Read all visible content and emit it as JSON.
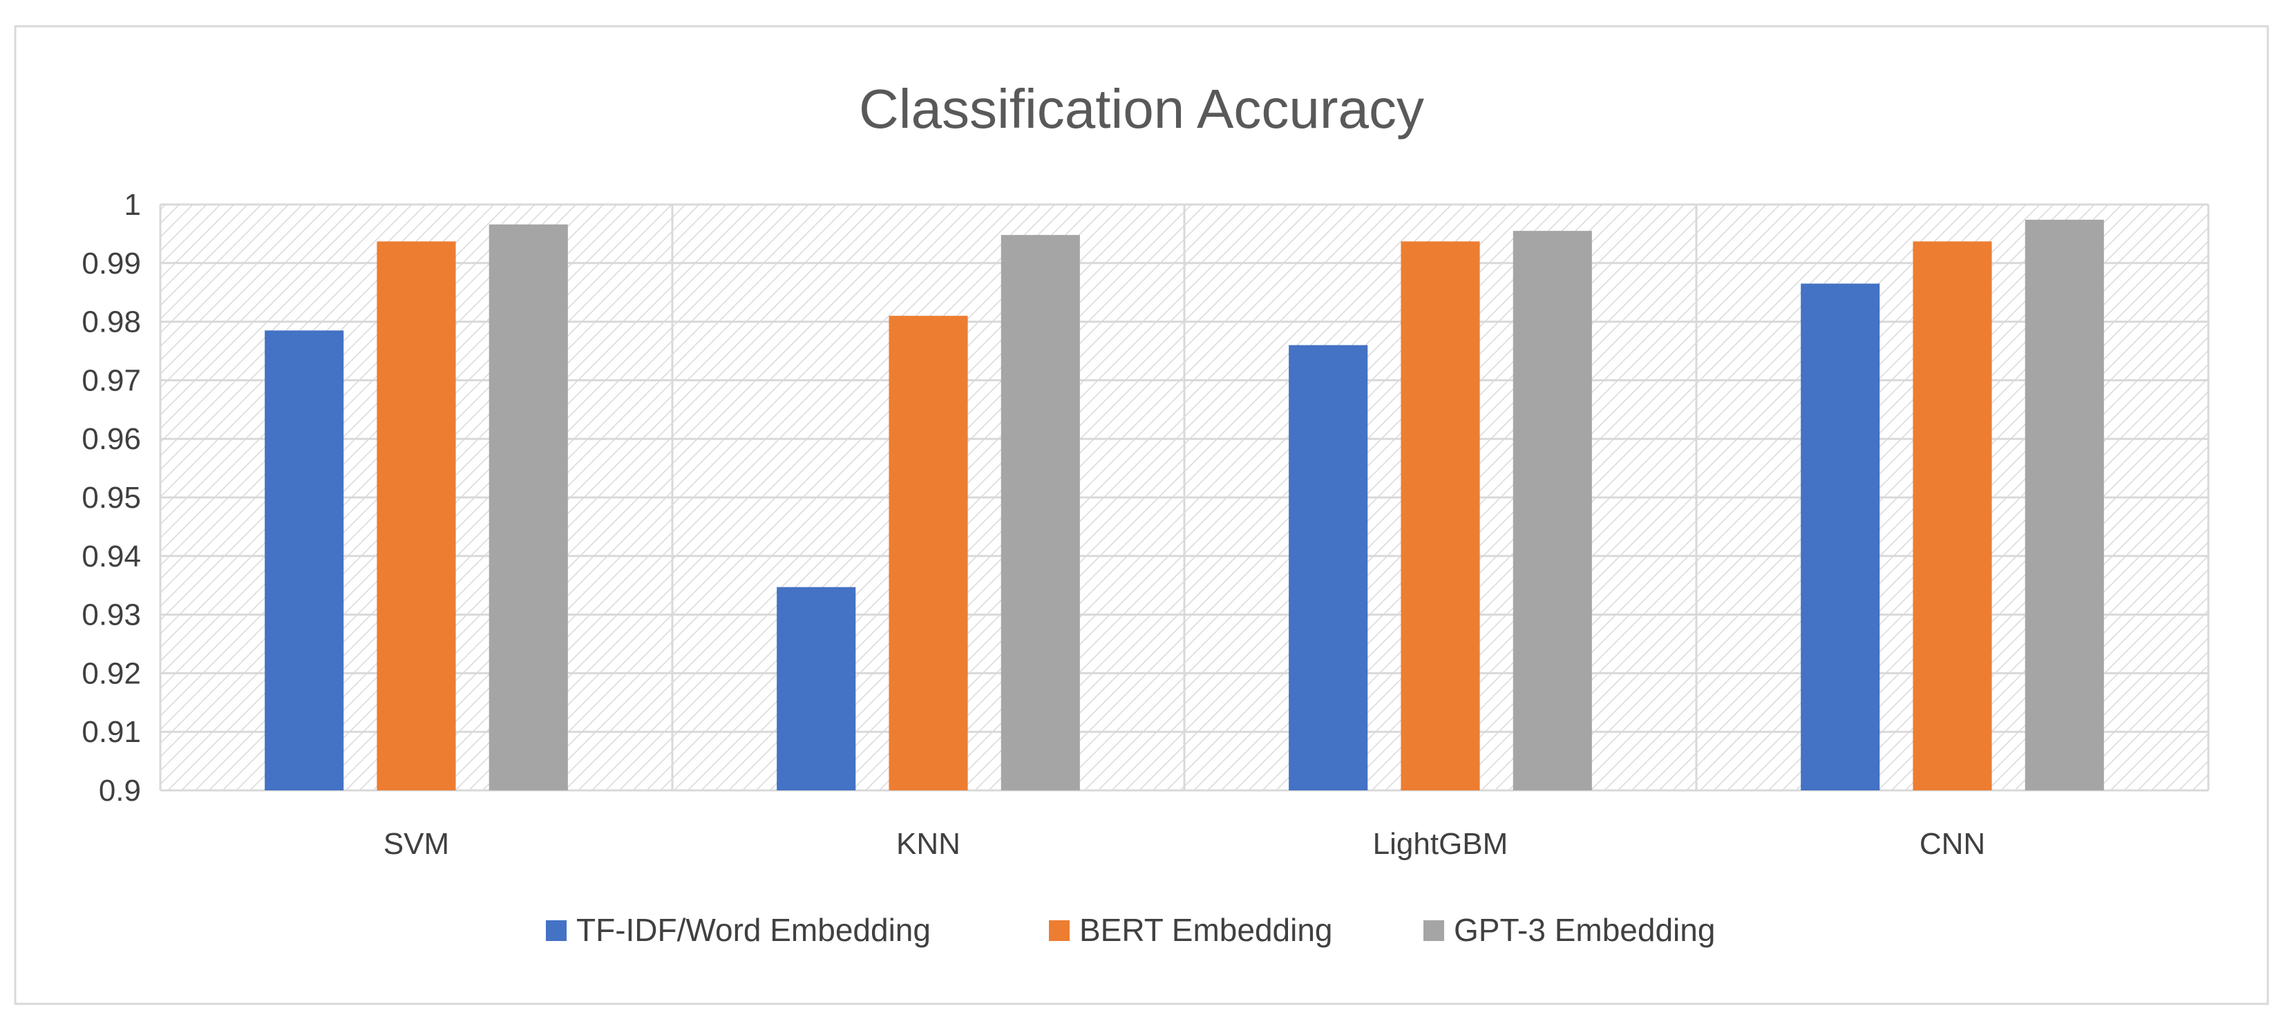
{
  "chart_data": {
    "type": "bar",
    "title": "Classification Accuracy",
    "categories": [
      "SVM",
      "KNN",
      "LightGBM",
      "CNN"
    ],
    "series": [
      {
        "name": "TF-IDF/Word Embedding",
        "color": "#4472C4",
        "values": [
          0.9785,
          0.9347,
          0.976,
          0.9865
        ]
      },
      {
        "name": "BERT Embedding",
        "color": "#ED7D31",
        "values": [
          0.9937,
          0.981,
          0.9937,
          0.9937
        ]
      },
      {
        "name": "GPT-3 Embedding",
        "color": "#A5A5A5",
        "values": [
          0.9966,
          0.9948,
          0.9955,
          0.9974
        ]
      }
    ],
    "y_ticks": [
      "0.9",
      "0.91",
      "0.92",
      "0.93",
      "0.94",
      "0.95",
      "0.96",
      "0.97",
      "0.98",
      "0.99",
      "1"
    ],
    "ylim": [
      0.9,
      1.0
    ],
    "grid": true,
    "legend_position": "bottom",
    "xlabel": "",
    "ylabel": ""
  }
}
